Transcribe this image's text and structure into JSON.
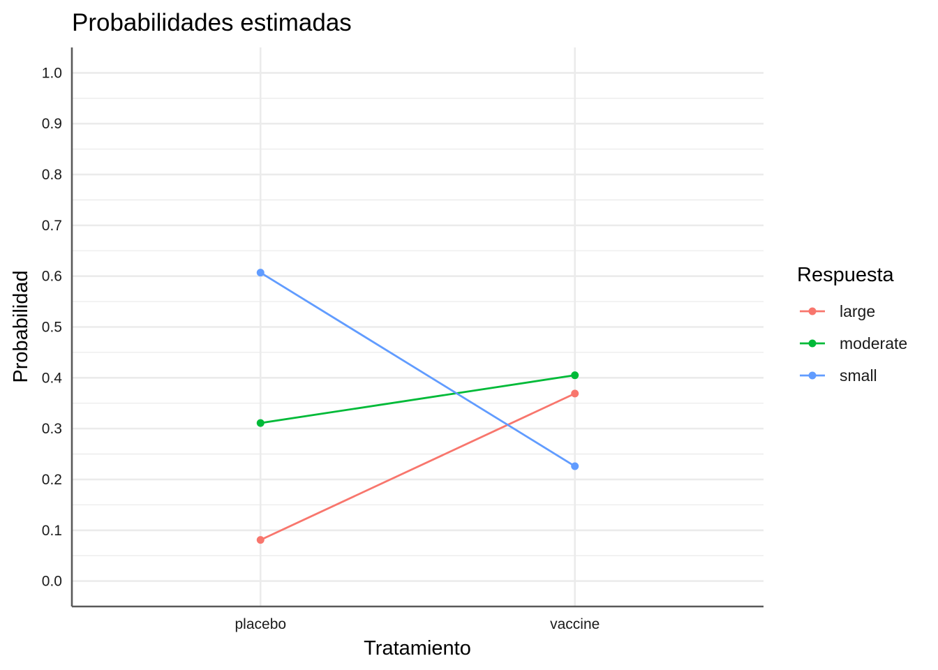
{
  "chart_data": {
    "type": "line",
    "title": "Probabilidades estimadas",
    "xlabel": "Tratamiento",
    "ylabel": "Probabilidad",
    "categories": [
      "placebo",
      "vaccine"
    ],
    "ylim": [
      -0.05,
      1.05
    ],
    "yticks": [
      0.0,
      0.1,
      0.2,
      0.3,
      0.4,
      0.5,
      0.6,
      0.7,
      0.8,
      0.9,
      1.0
    ],
    "ytick_labels": [
      "0.0",
      "0.1",
      "0.2",
      "0.3",
      "0.4",
      "0.5",
      "0.6",
      "0.7",
      "0.8",
      "0.9",
      "1.0"
    ],
    "grid": true,
    "legend": {
      "title": "Respuesta",
      "position": "right"
    },
    "series": [
      {
        "name": "large",
        "color": "#F8766D",
        "values": [
          0.081,
          0.369
        ]
      },
      {
        "name": "moderate",
        "color": "#00BA38",
        "values": [
          0.311,
          0.405
        ]
      },
      {
        "name": "small",
        "color": "#619CFF",
        "values": [
          0.607,
          0.226
        ]
      }
    ]
  }
}
